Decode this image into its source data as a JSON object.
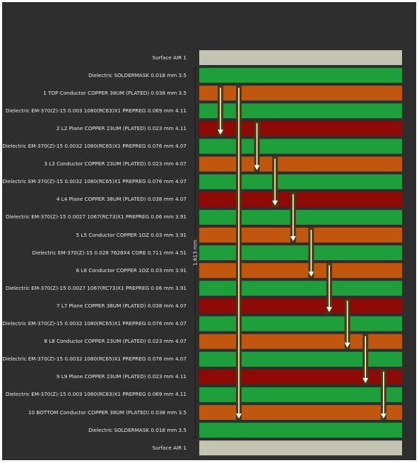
{
  "thickness_label": "1.613 mm",
  "colors": {
    "air": "#c4c4b2",
    "dielectric": "#1f9e3c",
    "conductor": "#c1570f",
    "plane": "#8d0a06",
    "via": "#4a3b0e",
    "background": "#2e2e2e",
    "text": "#ececec"
  },
  "layers": [
    {
      "label": "Surface AIR   1",
      "kind": "air"
    },
    {
      "label": "Dielectric SOLDERMASK 0.018 mm 3.5",
      "kind": "dielectric"
    },
    {
      "label": "1    TOP Conductor COPPER 38UM (PLATED) 0.038 mm 3.5",
      "kind": "conductor"
    },
    {
      "label": "Dielectric EM-370(Z)-15 0.003 1080(RC63)X1 PREPREG 0.069 mm 4.11",
      "kind": "dielectric"
    },
    {
      "label": "2    L2 Plane COPPER 23UM (PLATED) 0.023 mm 4.11",
      "kind": "plane"
    },
    {
      "label": "Dielectric EM-370(Z)-15 0.0032 1080(RC65)X1 PREPREG 0.076 mm 4.07",
      "kind": "dielectric"
    },
    {
      "label": "3    L3 Conductor COPPER 23UM (PLATED) 0.023 mm 4.07",
      "kind": "conductor"
    },
    {
      "label": "Dielectric EM-370(Z)-15 0.0032 1080(RC65)X1 PREPREG 0.076 mm 4.07",
      "kind": "dielectric"
    },
    {
      "label": "4    L4 Plane COPPER 38UM (PLATED) 0.038 mm 4.07",
      "kind": "plane"
    },
    {
      "label": "Dielectric EM-370(Z)-15 0.0027 1067(RC73)X1 PREPREG 0.06 mm 3.91",
      "kind": "dielectric"
    },
    {
      "label": "5    L5 Conductor COPPER 1OZ 0.03 mm 3.91",
      "kind": "conductor"
    },
    {
      "label": "Dielectric EM-370(Z)-15 0.028 7628X4 CORE 0.711 mm 4.51",
      "kind": "dielectric"
    },
    {
      "label": "6    L6 Conductor COPPER 1OZ 0.03 mm 3.91",
      "kind": "conductor"
    },
    {
      "label": "Dielectric EM-370(Z)-15 0.0027 1067(RC73)X1 PREPREG 0.06 mm 3.91",
      "kind": "dielectric"
    },
    {
      "label": "7    L7 Plane COPPER 38UM (PLATED) 0.038 mm 4.07",
      "kind": "plane"
    },
    {
      "label": "Dielectric EM-370(Z)-15 0.0032 1080(RC65)X1 PREPREG 0.076 mm 4.07",
      "kind": "dielectric"
    },
    {
      "label": "8    L8 Conductor COPPER 23UM (PLATED) 0.023 mm 4.07",
      "kind": "conductor"
    },
    {
      "label": "Dielectric EM-370(Z)-15 0.0032 1080(RC65)X1 PREPREG 0.076 mm 4.07",
      "kind": "dielectric"
    },
    {
      "label": "9    L9 Plane COPPER 23UM (PLATED) 0.023 mm 4.11",
      "kind": "plane"
    },
    {
      "label": "Dielectric EM-370(Z)-15 0.003 1080(RC63)X1 PREPREG 0.069 mm 4.11",
      "kind": "dielectric"
    },
    {
      "label": "10    BOTTOM Conductor COPPER 38UM (PLATED) 0.038 mm 3.5",
      "kind": "conductor"
    },
    {
      "label": "Dielectric SOLDERMASK 0.018 mm 3.5",
      "kind": "dielectric"
    },
    {
      "label": "Surface AIR   1",
      "kind": "air"
    }
  ],
  "vias": [
    {
      "from": 1,
      "to": 2
    },
    {
      "from": 1,
      "to": 10
    },
    {
      "from": 2,
      "to": 3
    },
    {
      "from": 3,
      "to": 4
    },
    {
      "from": 4,
      "to": 5
    },
    {
      "from": 5,
      "to": 6
    },
    {
      "from": 6,
      "to": 7
    },
    {
      "from": 7,
      "to": 8
    },
    {
      "from": 8,
      "to": 9
    },
    {
      "from": 9,
      "to": 10
    }
  ]
}
